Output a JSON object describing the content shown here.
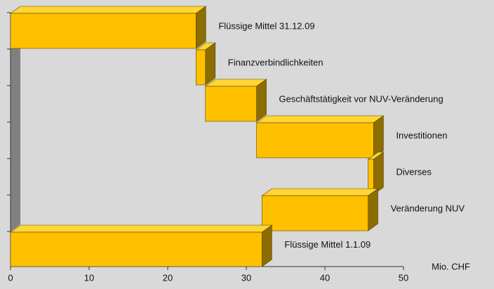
{
  "chart_data": {
    "type": "waterfall",
    "orientation": "horizontal",
    "categories": [
      "Flüssige Mittel 31.12.09",
      "Finanzverbindlichkeiten",
      "Geschäftstätigkeit vor NUV-Veränderung",
      "Investitionen",
      "Diverses",
      "Veränderung NUV",
      "Flüssige Mittel 1.1.09"
    ],
    "values": [
      23.6,
      -1.2,
      -6.5,
      -14.9,
      0.7,
      13.5,
      32
    ],
    "totals": [
      true,
      false,
      false,
      false,
      false,
      false,
      true
    ],
    "color": "#ffc000",
    "xlim": [
      0,
      50
    ],
    "xticks": [
      0,
      10,
      20,
      30,
      40,
      50
    ],
    "xlabel": "Mio. CHF"
  }
}
